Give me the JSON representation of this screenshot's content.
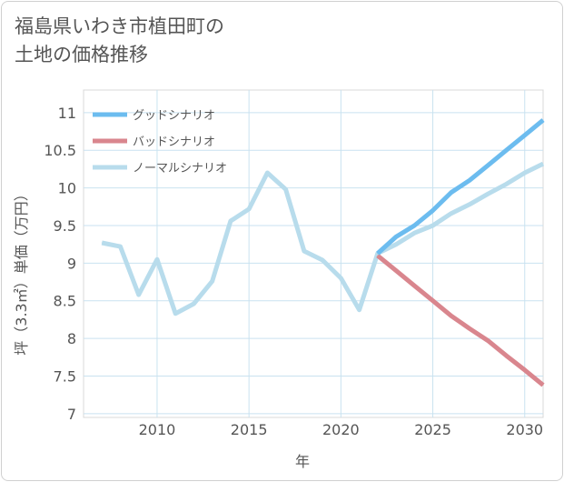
{
  "page": {
    "title_line1": "福島県いわき市植田町の",
    "title_line2": "土地の価格推移"
  },
  "chart_data": {
    "type": "line",
    "title": "福島県いわき市植田町の土地の価格推移",
    "xlabel": "年",
    "ylabel": "坪（3.3㎡）単価（万円）",
    "xlim": [
      2006,
      2031
    ],
    "ylim": [
      6.95,
      11.3
    ],
    "x_ticks": [
      2010,
      2015,
      2020,
      2025,
      2030
    ],
    "y_ticks": [
      7,
      7.5,
      8,
      8.5,
      9,
      9.5,
      10,
      10.5,
      11
    ],
    "grid": true,
    "legend_position": "top-left",
    "series": [
      {
        "name": "グッドシナリオ",
        "color": "#6cbcef",
        "x": [
          2022,
          2023,
          2024,
          2025,
          2026,
          2027,
          2028,
          2029,
          2030,
          2031
        ],
        "values": [
          9.13,
          9.35,
          9.5,
          9.7,
          9.94,
          10.1,
          10.3,
          10.5,
          10.7,
          10.9
        ]
      },
      {
        "name": "バッドシナリオ",
        "color": "#d9868e",
        "x": [
          2022,
          2023,
          2024,
          2025,
          2026,
          2027,
          2028,
          2029,
          2030,
          2031
        ],
        "values": [
          9.1,
          8.9,
          8.7,
          8.5,
          8.3,
          8.13,
          7.97,
          7.77,
          7.58,
          7.38
        ]
      },
      {
        "name": "ノーマルシナリオ",
        "color": "#b8dcec",
        "x": [
          2007,
          2008,
          2009,
          2010,
          2011,
          2012,
          2013,
          2014,
          2015,
          2016,
          2017,
          2018,
          2019,
          2020,
          2021,
          2022,
          2023,
          2024,
          2025,
          2026,
          2027,
          2028,
          2029,
          2030,
          2031
        ],
        "values": [
          9.27,
          9.22,
          8.58,
          9.05,
          8.33,
          8.46,
          8.76,
          9.56,
          9.72,
          10.2,
          9.98,
          9.16,
          9.04,
          8.8,
          8.38,
          9.13,
          9.25,
          9.4,
          9.5,
          9.66,
          9.78,
          9.92,
          10.05,
          10.2,
          10.32
        ]
      }
    ]
  }
}
